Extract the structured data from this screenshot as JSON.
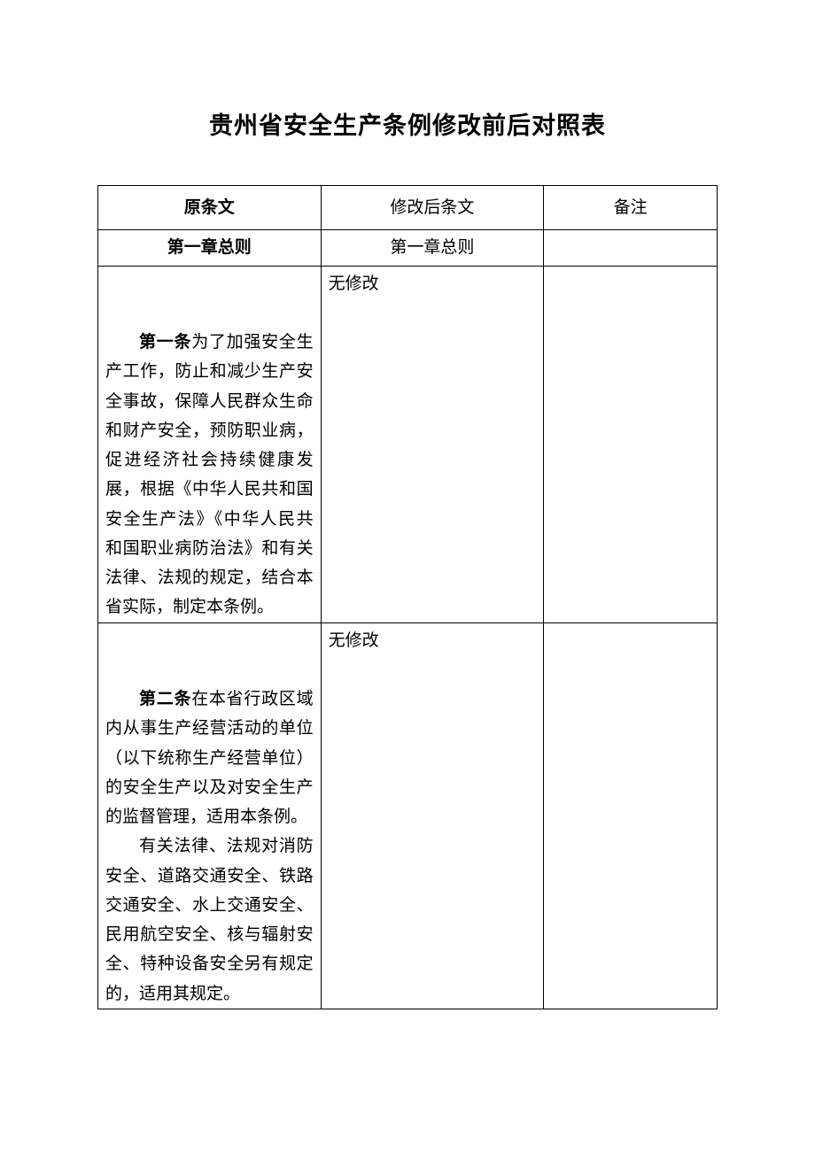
{
  "document": {
    "title": "贵州省安全生产条例修改前后对照表",
    "table": {
      "headers": {
        "original": "原条文",
        "revised": "修改后条文",
        "notes": "备注"
      },
      "chapter_row": {
        "original": "第一章总则",
        "revised": "第一章总则",
        "notes": ""
      },
      "rows": [
        {
          "original": {
            "article_label": "第一条",
            "article_text": "为了加强安全生产工作，防止和减少生产安全事故，保障人民群众生命和财产安全，预防职业病，促进经济社会持续健康发展，根据《中华人民共和国安全生产法》《中华人民共和国职业病防治法》和有关法律、法规的规定，结合本省实际，制定本条例。"
          },
          "revised": "无修改",
          "notes": ""
        },
        {
          "original": {
            "article_label": "第二条",
            "article_text": "在本省行政区域内从事生产经营活动的单位（以下统称生产经营单位）的安全生产以及对安全生产的监督管理，适用本条例。",
            "paragraph2": "有关法律、法规对消防安全、道路交通安全、铁路交通安全、水上交通安全、民用航空安全、核与辐射安全、特种设备安全另有规定的，适用其规定。"
          },
          "revised": "无修改",
          "notes": ""
        }
      ]
    },
    "colors": {
      "background": "#ffffff",
      "border": "#000000",
      "text": "#000000"
    },
    "typography": {
      "title_fontsize": 27,
      "body_fontsize": 19,
      "line_height": 1.75
    }
  }
}
